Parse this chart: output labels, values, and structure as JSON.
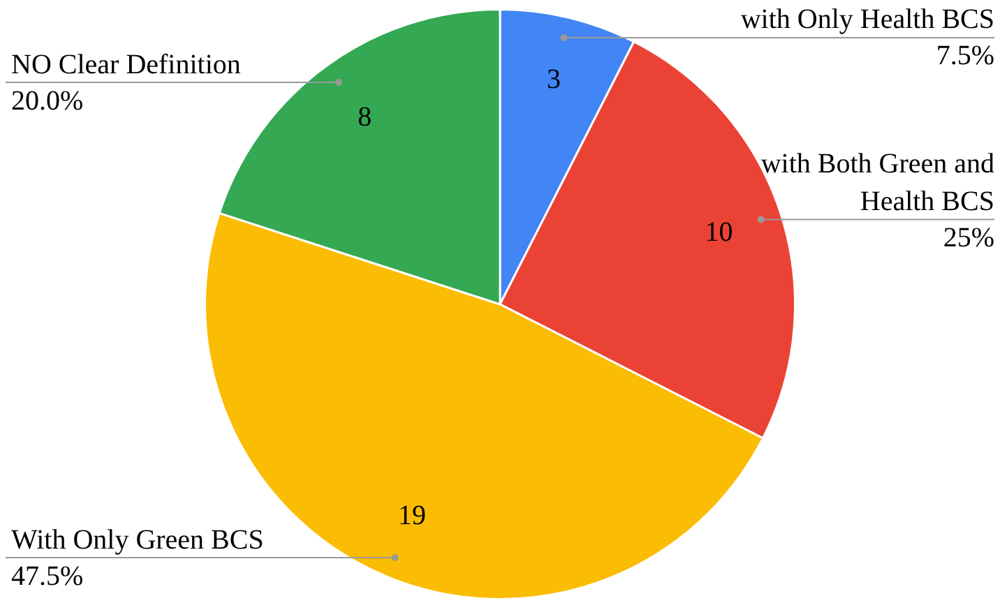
{
  "chart_data": {
    "type": "pie",
    "categories": [
      "with Only Health BCS",
      "with Both Green and Health BCS",
      "With Only Green BCS",
      "NO Clear Definition"
    ],
    "values": [
      3,
      10,
      19,
      8
    ],
    "colors": [
      "#4285f4",
      "#ea4335",
      "#fbbc04",
      "#34a853"
    ],
    "data_labels": true,
    "annotations": [
      {
        "text": "7.5%",
        "x": "with Only Health BCS"
      },
      {
        "text": "25%",
        "x": "with Both Green and Health BCS"
      },
      {
        "text": "47.5%",
        "x": "With Only Green BCS"
      },
      {
        "text": "20.0%",
        "x": "NO Clear Definition"
      }
    ],
    "legend": false
  }
}
